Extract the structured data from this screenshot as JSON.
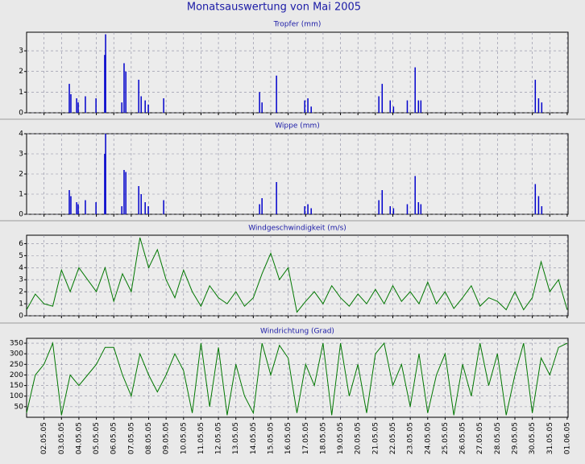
{
  "title": "Monatsauswertung von Mai 2005",
  "chart_data": [
    {
      "type": "bar",
      "title": "Tropfer (mm)",
      "color": "#0000cc",
      "x": [
        3.45,
        3.54,
        3.87,
        3.96,
        4.37,
        4.98,
        5.48,
        5.53,
        6.46,
        6.59,
        6.69,
        7.43,
        7.57,
        7.8,
        7.98,
        8.86,
        14.36,
        14.5,
        15.33,
        16.95,
        17.13,
        17.32,
        21.2,
        21.39,
        21.85,
        22.04,
        22.83,
        23.28,
        23.47,
        23.61,
        30.17,
        30.36,
        30.54
      ],
      "values": [
        1.4,
        0.9,
        0.7,
        0.5,
        0.8,
        0.7,
        2.8,
        3.8,
        0.5,
        2.4,
        2.0,
        1.6,
        0.8,
        0.6,
        0.4,
        0.7,
        1.0,
        0.5,
        1.8,
        0.6,
        0.7,
        0.3,
        0.8,
        1.4,
        0.6,
        0.3,
        0.6,
        2.2,
        0.6,
        0.6,
        1.6,
        0.7,
        0.5
      ],
      "xlim": [
        1,
        32.05
      ],
      "ylim": [
        0,
        3.9
      ],
      "yticks": [
        0,
        1,
        2,
        3
      ],
      "grid": true
    },
    {
      "type": "bar",
      "title": "Wippe (mm)",
      "color": "#0000cc",
      "x": [
        3.45,
        3.54,
        3.87,
        3.96,
        4.37,
        4.98,
        5.48,
        5.53,
        6.46,
        6.59,
        6.69,
        7.43,
        7.57,
        7.8,
        7.98,
        8.86,
        14.36,
        14.5,
        15.33,
        16.95,
        17.13,
        17.32,
        21.2,
        21.39,
        21.85,
        22.04,
        22.83,
        23.28,
        23.47,
        23.61,
        30.17,
        30.36,
        30.54
      ],
      "values": [
        1.2,
        0.9,
        0.6,
        0.5,
        0.7,
        0.6,
        3.0,
        4.0,
        0.4,
        2.2,
        2.1,
        1.4,
        1.0,
        0.6,
        0.4,
        0.7,
        0.5,
        0.8,
        1.6,
        0.4,
        0.5,
        0.3,
        0.7,
        1.2,
        0.4,
        0.3,
        0.5,
        1.9,
        0.6,
        0.5,
        1.5,
        0.9,
        0.4
      ],
      "xlim": [
        1,
        32.05
      ],
      "ylim": [
        0,
        4
      ],
      "yticks": [
        0,
        1,
        2,
        3,
        4
      ],
      "grid": true
    },
    {
      "type": "line",
      "title": "Windgeschwindigkeit (m/s)",
      "color": "#007700",
      "x": [
        1.0,
        1.5,
        2.0,
        2.5,
        3.0,
        3.5,
        4.0,
        4.5,
        5.0,
        5.5,
        6.0,
        6.5,
        7.0,
        7.5,
        8.0,
        8.5,
        9.0,
        9.5,
        10.0,
        10.5,
        11.0,
        11.5,
        12.0,
        12.5,
        13.0,
        13.5,
        14.0,
        14.5,
        15.0,
        15.5,
        16.0,
        16.5,
        17.0,
        17.5,
        18.0,
        18.5,
        19.0,
        19.5,
        20.0,
        20.5,
        21.0,
        21.5,
        22.0,
        22.5,
        23.0,
        23.5,
        24.0,
        24.5,
        25.0,
        25.5,
        26.0,
        26.5,
        27.0,
        27.5,
        28.0,
        28.5,
        29.0,
        29.5,
        30.0,
        30.5,
        31.0,
        31.5,
        32.0
      ],
      "values": [
        0.5,
        1.8,
        1.0,
        0.8,
        3.8,
        2.0,
        4.0,
        3.0,
        2.0,
        4.0,
        1.2,
        3.5,
        2.0,
        6.5,
        4.0,
        5.5,
        3.0,
        1.5,
        3.8,
        2.0,
        0.8,
        2.5,
        1.5,
        1.0,
        2.0,
        0.8,
        1.5,
        3.5,
        5.2,
        3.0,
        4.0,
        0.3,
        1.2,
        2.0,
        1.0,
        2.5,
        1.5,
        0.8,
        1.8,
        1.0,
        2.2,
        1.0,
        2.5,
        1.2,
        2.0,
        1.0,
        2.8,
        1.0,
        2.0,
        0.6,
        1.5,
        2.5,
        0.8,
        1.5,
        1.2,
        0.5,
        2.0,
        0.5,
        1.5,
        4.5,
        2.0,
        3.0,
        0.5
      ],
      "xlim": [
        1,
        32.05
      ],
      "ylim": [
        0,
        6.7
      ],
      "yticks": [
        0,
        1,
        2,
        3,
        4,
        5,
        6
      ],
      "grid": true
    },
    {
      "type": "line",
      "title": "Windrichtung (Grad)",
      "color": "#007700",
      "x": [
        1.0,
        1.5,
        2.0,
        2.5,
        3.0,
        3.5,
        4.0,
        4.5,
        5.0,
        5.5,
        6.0,
        6.5,
        7.0,
        7.5,
        8.0,
        8.5,
        9.0,
        9.5,
        10.0,
        10.5,
        11.0,
        11.5,
        12.0,
        12.5,
        13.0,
        13.5,
        14.0,
        14.5,
        15.0,
        15.5,
        16.0,
        16.5,
        17.0,
        17.5,
        18.0,
        18.5,
        19.0,
        19.5,
        20.0,
        20.5,
        21.0,
        21.5,
        22.0,
        22.5,
        23.0,
        23.5,
        24.0,
        24.5,
        25.0,
        25.5,
        26.0,
        26.5,
        27.0,
        27.5,
        28.0,
        28.5,
        29.0,
        29.5,
        30.0,
        30.5,
        31.0,
        31.5,
        32.0
      ],
      "values": [
        20,
        200,
        250,
        350,
        10,
        200,
        150,
        200,
        250,
        330,
        330,
        200,
        100,
        300,
        200,
        120,
        200,
        300,
        220,
        20,
        350,
        50,
        330,
        10,
        250,
        100,
        20,
        350,
        200,
        340,
        280,
        20,
        250,
        150,
        350,
        10,
        350,
        100,
        250,
        20,
        300,
        350,
        150,
        250,
        50,
        300,
        20,
        200,
        300,
        10,
        250,
        100,
        350,
        150,
        300,
        10,
        200,
        350,
        20,
        280,
        200,
        330,
        350
      ],
      "xlim": [
        1,
        32.05
      ],
      "ylim": [
        0,
        373
      ],
      "yticks": [
        50,
        100,
        150,
        200,
        250,
        300,
        350
      ],
      "grid": true,
      "xticks": [
        {
          "value": 2,
          "label": "02.05.05"
        },
        {
          "value": 3,
          "label": "03.05.05"
        },
        {
          "value": 4,
          "label": "04.05.05"
        },
        {
          "value": 5,
          "label": "05.05.05"
        },
        {
          "value": 6,
          "label": "06.05.05"
        },
        {
          "value": 7,
          "label": "07.05.05"
        },
        {
          "value": 8,
          "label": "08.05.05"
        },
        {
          "value": 9,
          "label": "09.05.05"
        },
        {
          "value": 10,
          "label": "10.05.05"
        },
        {
          "value": 11,
          "label": "11.05.05"
        },
        {
          "value": 12,
          "label": "12.05.05"
        },
        {
          "value": 13,
          "label": "13.05.05"
        },
        {
          "value": 14,
          "label": "14.05.05"
        },
        {
          "value": 15,
          "label": "15.05.05"
        },
        {
          "value": 16,
          "label": "16.05.05"
        },
        {
          "value": 17,
          "label": "17.05.05"
        },
        {
          "value": 18,
          "label": "18.05.05"
        },
        {
          "value": 19,
          "label": "19.05.05"
        },
        {
          "value": 20,
          "label": "20.05.05"
        },
        {
          "value": 21,
          "label": "21.05.05"
        },
        {
          "value": 22,
          "label": "22.05.05"
        },
        {
          "value": 23,
          "label": "23.05.05"
        },
        {
          "value": 24,
          "label": "24.05.05"
        },
        {
          "value": 25,
          "label": "25.05.05"
        },
        {
          "value": 26,
          "label": "26.05.05"
        },
        {
          "value": 27,
          "label": "27.05.05"
        },
        {
          "value": 28,
          "label": "28.05.05"
        },
        {
          "value": 29,
          "label": "29.05.05"
        },
        {
          "value": 30,
          "label": "30.05.05"
        },
        {
          "value": 31,
          "label": "31.05.05"
        },
        {
          "value": 32,
          "label": "01.06.05"
        }
      ]
    }
  ]
}
